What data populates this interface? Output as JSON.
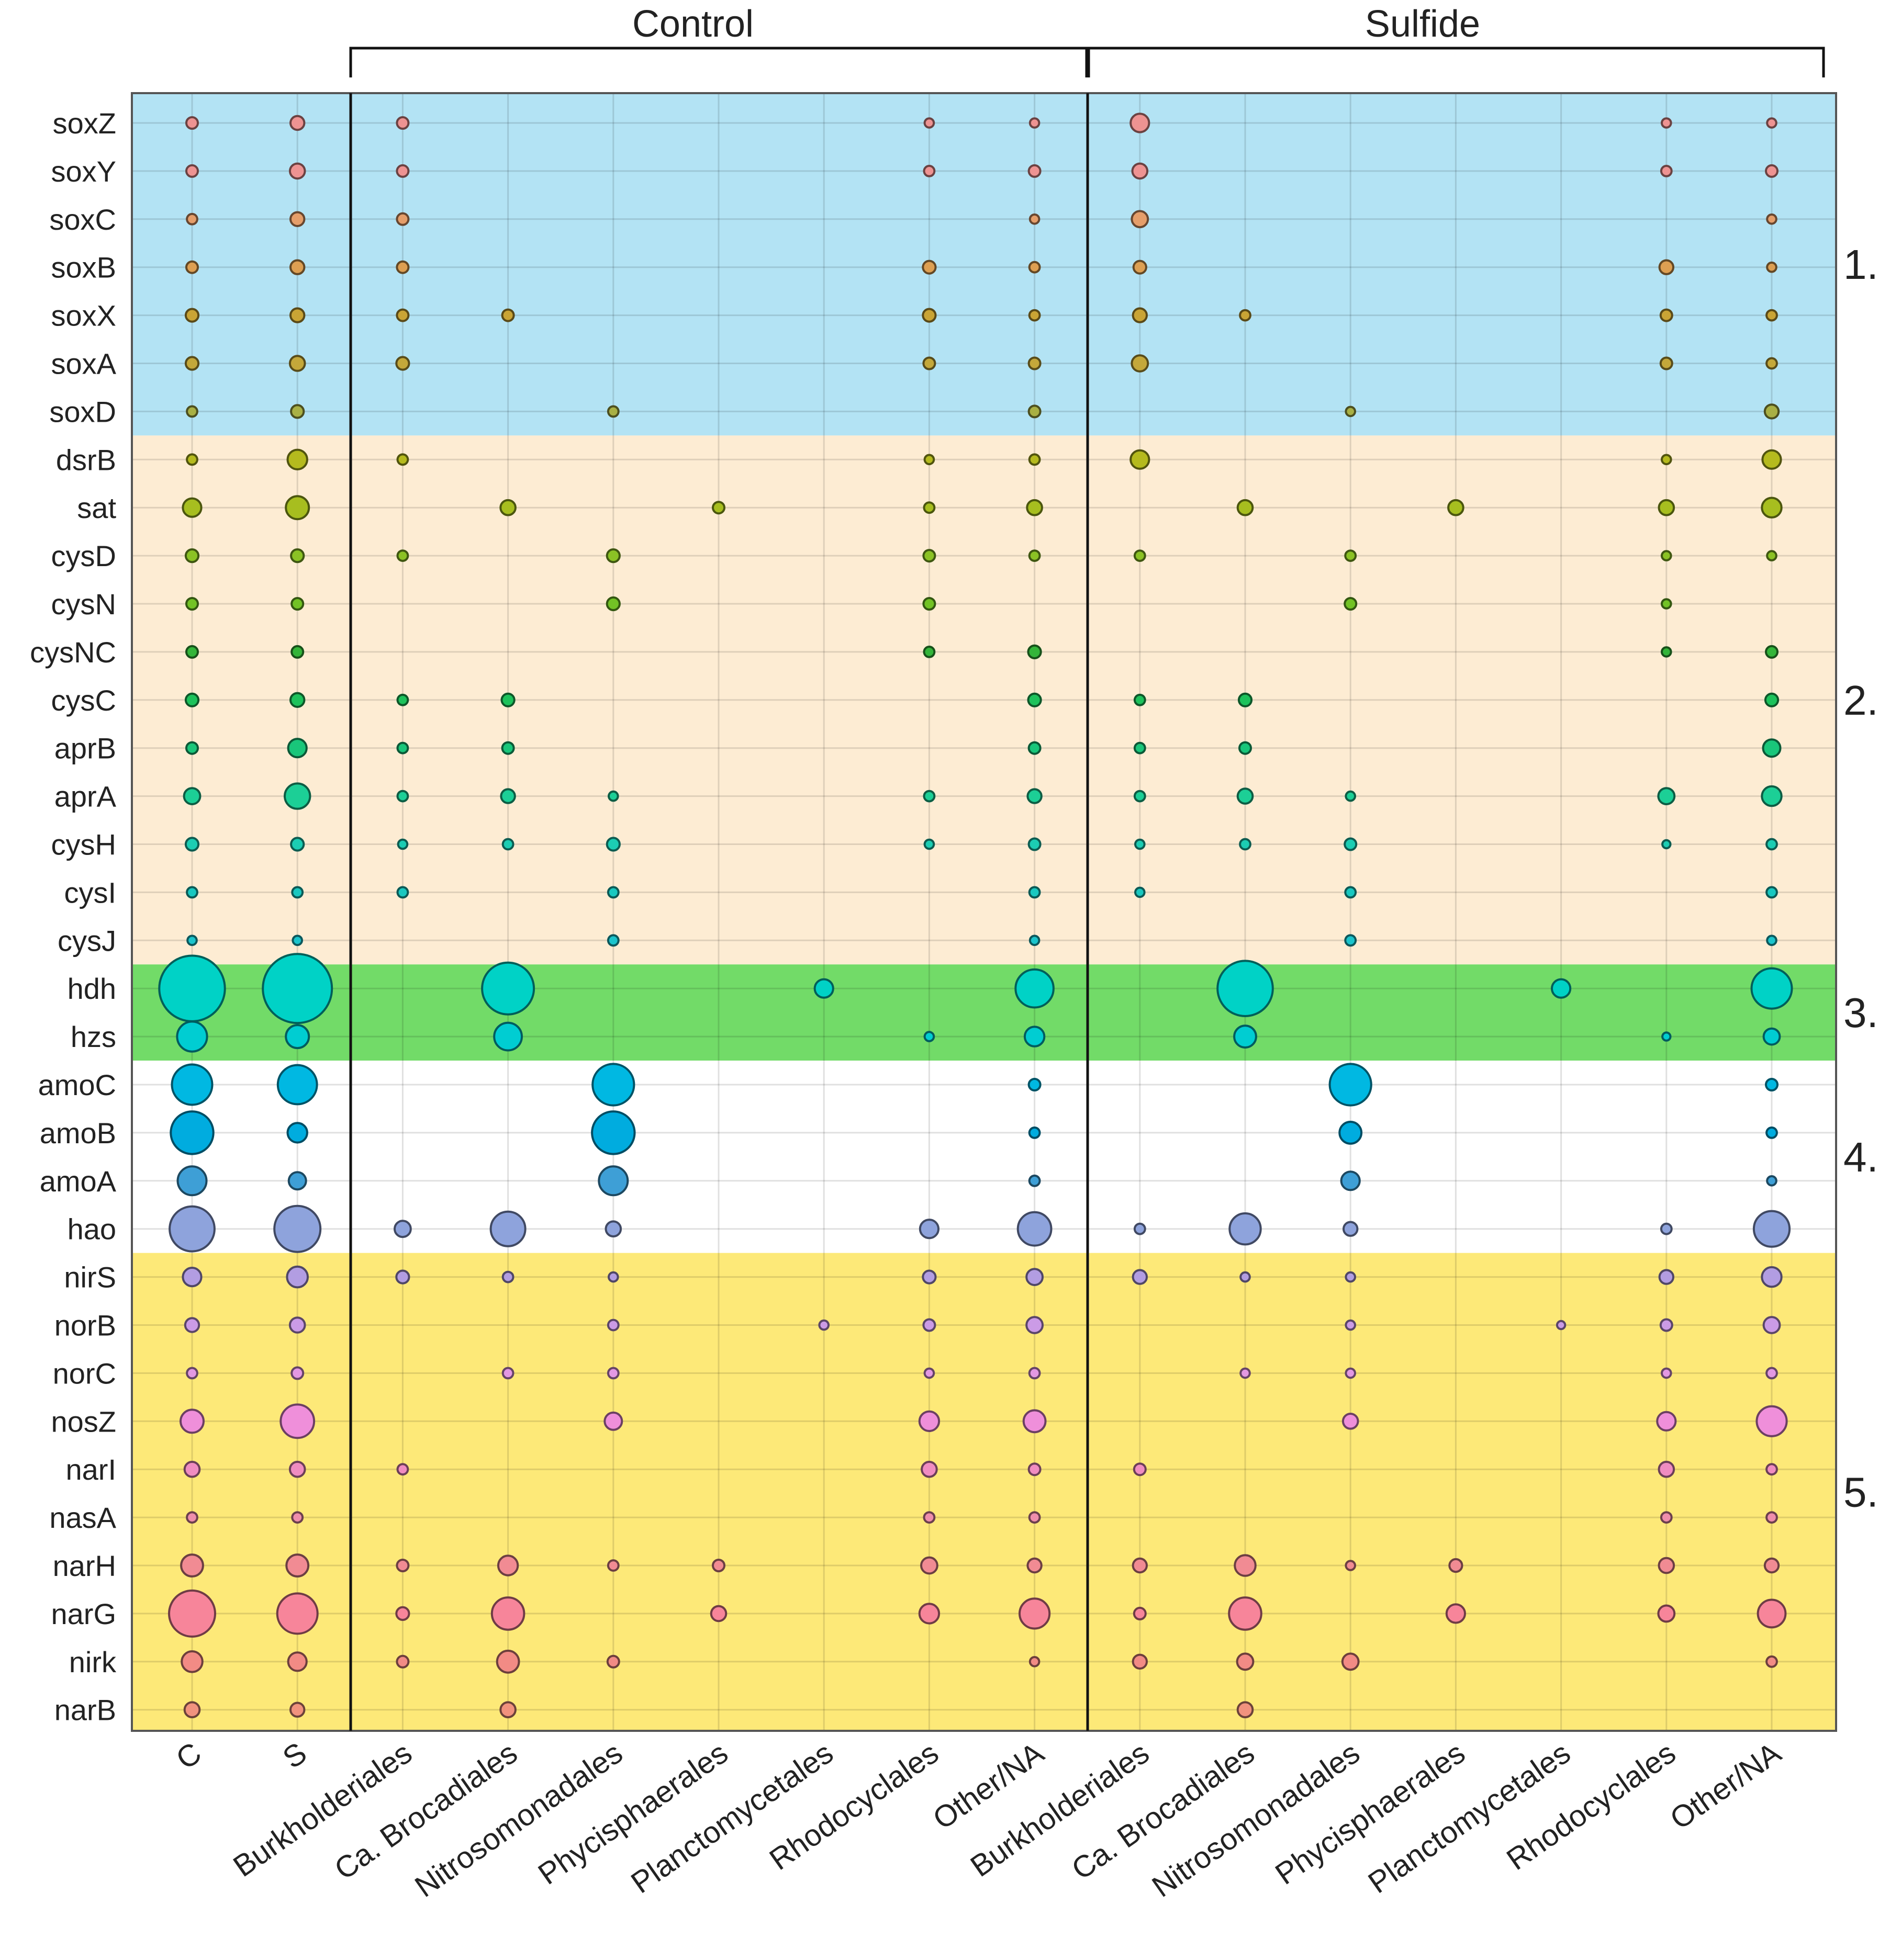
{
  "chart_data": {
    "type": "bubble-matrix",
    "title": "",
    "groups": [
      {
        "name": "Control",
        "columns": [
          "Burkholderiales",
          "Ca. Brocadiales",
          "Nitrosomonadales",
          "Phycisphaerales",
          "Planctomycetales",
          "Rhodocyclales",
          "Other/NA"
        ]
      },
      {
        "name": "Sulfide",
        "columns": [
          "Burkholderiales",
          "Ca. Brocadiales",
          "Nitrosomonadales",
          "Phycisphaerales",
          "Planctomycetales",
          "Rhodocyclales",
          "Other/NA"
        ]
      }
    ],
    "columns": [
      "C",
      "S",
      "Burkholderiales",
      "Ca. Brocadiales",
      "Nitrosomonadales",
      "Phycisphaerales",
      "Planctomycetales",
      "Rhodocyclales",
      "Other/NA",
      "Burkholderiales",
      "Ca. Brocadiales",
      "Nitrosomonadales",
      "Phycisphaerales",
      "Planctomycetales",
      "Rhodocyclales",
      "Other/NA"
    ],
    "rows": [
      "soxZ",
      "soxY",
      "soxC",
      "soxB",
      "soxX",
      "soxA",
      "soxD",
      "dsrB",
      "sat",
      "cysD",
      "cysN",
      "cysNC",
      "cysC",
      "aprB",
      "aprA",
      "cysH",
      "cysI",
      "cysJ",
      "hdh",
      "hzs",
      "amoC",
      "amoB",
      "amoA",
      "hao",
      "nirS",
      "norB",
      "norC",
      "nosZ",
      "narI",
      "nasA",
      "narH",
      "narG",
      "nirk",
      "narB"
    ],
    "row_colors": [
      "#ee9392",
      "#ee9392",
      "#e59e6a",
      "#dd9f52",
      "#c9a435",
      "#c4a83a",
      "#a9b044",
      "#b5ba1e",
      "#a7be1f",
      "#8bc225",
      "#72c225",
      "#33b53a",
      "#1dc25b",
      "#19c67a",
      "#1ccf96",
      "#1ccdb3",
      "#19c8c0",
      "#1bc4cc",
      "#00d2c6",
      "#00cdd2",
      "#00b8e2",
      "#00acdf",
      "#3e9fd6",
      "#8ea3dc",
      "#b29de2",
      "#cb9be6",
      "#e398e3",
      "#ef8fda",
      "#f08cc1",
      "#ef8eac",
      "#f18b93",
      "#f7859a",
      "#f28b85",
      "#f1927e"
    ],
    "bands": [
      {
        "label": "1.",
        "rows": [
          "soxZ",
          "soxD"
        ],
        "color": "#b3e3f4"
      },
      {
        "label": "2.",
        "rows": [
          "dsrB",
          "cysJ"
        ],
        "color": "#fdecd3"
      },
      {
        "label": "3.",
        "rows": [
          "hdh",
          "hzs"
        ],
        "color": "#72db68"
      },
      {
        "label": "4.",
        "rows": [
          "amoC",
          "hao"
        ],
        "color": "#ffffff"
      },
      {
        "label": "5.",
        "rows": [
          "nirS",
          "narB"
        ],
        "color": "#fde978"
      }
    ],
    "size_scale": "relative gene abundance (arbitrary units, 0 = absent)",
    "values": [
      [
        1,
        1.2,
        1,
        0,
        0,
        0,
        0,
        0.8,
        0.8,
        1.6,
        0,
        0,
        0,
        0,
        0.8,
        0.8
      ],
      [
        1,
        1.3,
        1,
        0,
        0,
        0,
        0,
        0.9,
        1,
        1.3,
        0,
        0,
        0,
        0,
        0.9,
        1
      ],
      [
        0.9,
        1.2,
        1,
        0,
        0,
        0,
        0,
        0,
        0.8,
        1.4,
        0,
        0,
        0,
        0,
        0,
        0.8
      ],
      [
        1,
        1.2,
        1,
        0,
        0,
        0,
        0,
        1.1,
        0.9,
        1.1,
        0,
        0,
        0,
        0,
        1.2,
        0.8
      ],
      [
        1.1,
        1.2,
        1,
        1,
        0,
        0,
        0,
        1.1,
        0.9,
        1.2,
        0.9,
        0,
        0,
        0,
        1,
        0.9
      ],
      [
        1.1,
        1.3,
        1.1,
        0,
        0,
        0,
        0,
        1,
        1,
        1.4,
        0,
        0,
        0,
        0,
        1,
        0.9
      ],
      [
        0.9,
        1.1,
        0,
        0,
        0.9,
        0,
        0,
        0,
        1,
        0,
        0,
        0.8,
        0,
        0,
        0,
        1.2
      ],
      [
        0.9,
        1.7,
        0.9,
        0,
        0,
        0,
        0,
        0.8,
        0.9,
        1.6,
        0,
        0,
        0,
        0,
        0.8,
        1.6
      ],
      [
        1.6,
        2,
        0,
        1.3,
        0,
        1,
        0,
        0.9,
        1.3,
        0,
        1.3,
        0,
        1.3,
        0,
        1.3,
        1.7
      ],
      [
        1.1,
        1.1,
        0.9,
        0,
        1.1,
        0,
        0,
        1,
        0.9,
        0.9,
        0,
        0.9,
        0,
        0,
        0.8,
        0.8
      ],
      [
        1,
        1,
        0,
        0,
        1.1,
        0,
        0,
        1,
        0,
        0,
        0,
        1,
        0,
        0,
        0.8,
        0
      ],
      [
        1,
        1,
        0,
        0,
        0,
        0,
        0,
        0.9,
        1.1,
        0,
        0,
        0,
        0,
        0,
        0.8,
        1
      ],
      [
        1.1,
        1.2,
        0.9,
        1.1,
        0,
        0,
        0,
        0,
        1.1,
        0.9,
        1.1,
        0,
        0,
        0,
        0,
        1.1
      ],
      [
        1,
        1.6,
        0.9,
        1,
        0,
        0,
        0,
        0,
        1,
        0.9,
        1,
        0,
        0,
        0,
        0,
        1.5
      ],
      [
        1.4,
        2.2,
        0.9,
        1.2,
        0.8,
        0,
        0,
        0.9,
        1.2,
        0.9,
        1.3,
        0.8,
        0,
        0,
        1.4,
        1.7
      ],
      [
        1.1,
        1.1,
        0.8,
        0.9,
        1.1,
        0,
        0,
        0.8,
        1,
        0.8,
        0.9,
        1,
        0,
        0,
        0.7,
        0.9
      ],
      [
        0.9,
        0.9,
        0.9,
        0,
        0.9,
        0,
        0,
        0,
        0.9,
        0.8,
        0,
        0.9,
        0,
        0,
        0,
        0.9
      ],
      [
        0.8,
        0.8,
        0,
        0,
        0.9,
        0,
        0,
        0,
        0.8,
        0,
        0,
        0.9,
        0,
        0,
        0,
        0.8
      ],
      [
        5.7,
        6,
        0,
        4.5,
        0,
        0,
        1.6,
        0,
        3.3,
        0,
        4.8,
        0,
        0,
        1.6,
        0,
        3.5
      ],
      [
        2.6,
        2,
        0,
        2.4,
        0,
        0,
        0,
        0.8,
        1.7,
        0,
        1.9,
        0,
        0,
        0,
        0.7,
        1.4
      ],
      [
        3.5,
        3.4,
        0,
        0,
        3.6,
        0,
        0,
        0,
        1,
        0,
        0,
        3.6,
        0,
        0,
        0,
        1
      ],
      [
        3.7,
        1.7,
        0,
        0,
        3.7,
        0,
        0,
        0,
        0.9,
        0,
        0,
        1.9,
        0,
        0,
        0,
        0.9
      ],
      [
        2.5,
        1.5,
        0,
        0,
        2.5,
        0,
        0,
        0,
        0.9,
        0,
        0,
        1.6,
        0,
        0,
        0,
        0.8
      ],
      [
        3.9,
        4,
        1.4,
        3,
        1.3,
        0,
        0,
        1.6,
        2.9,
        0.9,
        2.7,
        1.2,
        0,
        0,
        0.9,
        3.1
      ],
      [
        1.6,
        1.8,
        1.1,
        0.9,
        0.8,
        0,
        0,
        1.1,
        1.4,
        1.2,
        0.8,
        0.8,
        0,
        0,
        1.2,
        1.7
      ],
      [
        1.2,
        1.3,
        0,
        0,
        0.9,
        0,
        0.8,
        1,
        1.4,
        0,
        0,
        0.8,
        0,
        0.7,
        1,
        1.4
      ],
      [
        0.9,
        1,
        0,
        0.9,
        0.9,
        0,
        0,
        0.8,
        0.9,
        0,
        0.8,
        0.8,
        0,
        0,
        0.8,
        0.9
      ],
      [
        2,
        2.9,
        0,
        0,
        1.5,
        0,
        0,
        1.7,
        1.9,
        0,
        0,
        1.3,
        0,
        0,
        1.6,
        2.6
      ],
      [
        1.3,
        1.3,
        0.9,
        0,
        0,
        0,
        0,
        1.3,
        1,
        1,
        0,
        0,
        0,
        0,
        1.3,
        0.9
      ],
      [
        0.9,
        0.9,
        0,
        0,
        0,
        0,
        0,
        0.9,
        0.9,
        0,
        0,
        0,
        0,
        0,
        0.9,
        0.9
      ],
      [
        1.9,
        1.9,
        1,
        1.7,
        0.9,
        1,
        0,
        1.4,
        1.2,
        1.2,
        1.8,
        0.8,
        1.1,
        0,
        1.3,
        1.2
      ],
      [
        4,
        3.5,
        1.1,
        2.8,
        0,
        1.3,
        0,
        1.7,
        2.6,
        1,
        2.8,
        0,
        1.6,
        0,
        1.4,
        2.4
      ],
      [
        1.8,
        1.6,
        1,
        1.9,
        1,
        0,
        0,
        0,
        0.8,
        1.2,
        1.4,
        1.4,
        0,
        0,
        0,
        0.9
      ],
      [
        1.3,
        1.2,
        0,
        1.3,
        0,
        0,
        0,
        0,
        0,
        0,
        1.3,
        0,
        0,
        0,
        0,
        0
      ]
    ]
  }
}
